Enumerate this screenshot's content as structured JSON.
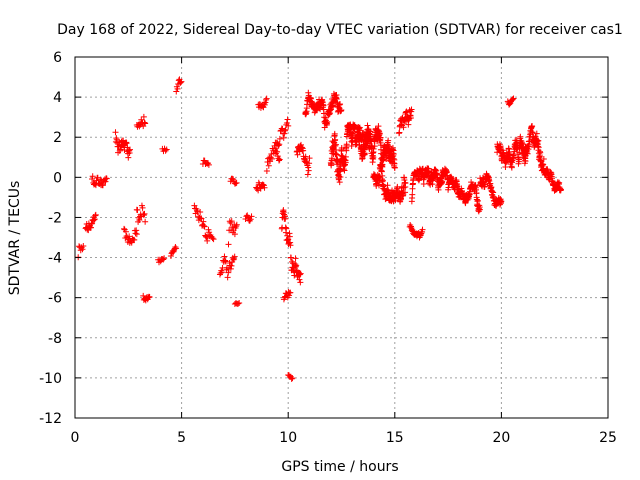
{
  "chart_data": {
    "type": "scatter",
    "title": "Day 168 of 2022, Sidereal Day-to-day VTEC variation (SDTVAR) for receiver cas1",
    "xlabel": "GPS time / hours",
    "ylabel": "SDTVAR / TECUs",
    "xlim": [
      0,
      25
    ],
    "ylim": [
      -12,
      6
    ],
    "xticks": [
      "0",
      "5",
      "10",
      "15",
      "20",
      "25"
    ],
    "yticks": [
      "6",
      "4",
      "2",
      "0",
      "-2",
      "-4",
      "-6",
      "-8",
      "-10",
      "-12"
    ],
    "grid": true,
    "marker": "+",
    "color": "#ff0000",
    "segments": [
      {
        "t0": 0.15,
        "t1": 0.4,
        "y0": -4.0,
        "amp": 2.5,
        "step": 0.04
      },
      {
        "t0": 0.5,
        "t1": 1.0,
        "y0": -2.5,
        "amp": 1.2,
        "step": 0.025
      },
      {
        "t0": 0.8,
        "t1": 1.5,
        "y0": 0.0,
        "amp": 1.3,
        "step": 0.03
      },
      {
        "t0": 1.9,
        "t1": 2.6,
        "y0": 2.3,
        "amp": 1.5,
        "step": 0.02
      },
      {
        "t0": 2.3,
        "t1": 2.9,
        "y0": -2.5,
        "amp": 1.5,
        "step": 0.03
      },
      {
        "t0": 2.9,
        "t1": 3.3,
        "y0": 2.5,
        "amp": 1.5,
        "step": 0.03
      },
      {
        "t0": 2.9,
        "t1": 3.3,
        "y0": -2.0,
        "amp": 2.0,
        "step": 0.03
      },
      {
        "t0": 3.2,
        "t1": 3.5,
        "y0": -6.0,
        "amp": 0.6,
        "step": 0.03
      },
      {
        "t0": 3.9,
        "t1": 4.2,
        "y0": -4.2,
        "amp": 0.5,
        "step": 0.04
      },
      {
        "t0": 4.1,
        "t1": 4.3,
        "y0": 1.5,
        "amp": 0.6,
        "step": 0.05
      },
      {
        "t0": 4.5,
        "t1": 4.75,
        "y0": -4.0,
        "amp": 0.6,
        "step": 0.03
      },
      {
        "t0": 4.75,
        "t1": 5.0,
        "y0": 4.5,
        "amp": 1.0,
        "step": 0.03
      },
      {
        "t0": 5.6,
        "t1": 6.3,
        "y0": -1.5,
        "amp": 1.5,
        "step": 0.03
      },
      {
        "t0": 6.0,
        "t1": 6.3,
        "y0": 0.8,
        "amp": 0.6,
        "step": 0.04
      },
      {
        "t0": 6.3,
        "t1": 6.5,
        "y0": -3.0,
        "amp": 0.6,
        "step": 0.05
      },
      {
        "t0": 6.8,
        "t1": 7.5,
        "y0": -5.0,
        "amp": 1.5,
        "step": 0.03
      },
      {
        "t0": 7.2,
        "t1": 7.6,
        "y0": -3.0,
        "amp": 2.5,
        "step": 0.03
      },
      {
        "t0": 7.3,
        "t1": 7.6,
        "y0": 0.0,
        "amp": 0.8,
        "step": 0.04
      },
      {
        "t0": 7.5,
        "t1": 7.7,
        "y0": -6.3,
        "amp": 0.4,
        "step": 0.05
      },
      {
        "t0": 8.0,
        "t1": 8.3,
        "y0": -2.0,
        "amp": 0.8,
        "step": 0.04
      },
      {
        "t0": 8.5,
        "t1": 8.9,
        "y0": -0.5,
        "amp": 1.0,
        "step": 0.03
      },
      {
        "t0": 8.6,
        "t1": 9.0,
        "y0": 3.5,
        "amp": 0.6,
        "step": 0.03
      },
      {
        "t0": 9.0,
        "t1": 9.6,
        "y0": 0.5,
        "amp": 1.8,
        "step": 0.03
      },
      {
        "t0": 9.4,
        "t1": 10.0,
        "y0": 1.5,
        "amp": 1.5,
        "step": 0.03
      },
      {
        "t0": 9.7,
        "t1": 10.6,
        "y0": -3.0,
        "amp": 2.0,
        "step": 0.015
      },
      {
        "t0": 9.8,
        "t1": 10.1,
        "y0": -6.0,
        "amp": 1.0,
        "step": 0.03
      },
      {
        "t0": 10.0,
        "t1": 10.2,
        "y0": -9.8,
        "amp": 0.7,
        "step": 0.04
      },
      {
        "t0": 10.4,
        "t1": 11.0,
        "y0": 1.0,
        "amp": 1.2,
        "step": 0.02
      },
      {
        "t0": 10.8,
        "t1": 12.5,
        "y0": 3.0,
        "amp": 1.3,
        "step": 0.012
      },
      {
        "t0": 12.0,
        "t1": 15.0,
        "y0": 0.8,
        "amp": 1.7,
        "step": 0.008
      },
      {
        "t0": 13.3,
        "t1": 13.8,
        "y0": 2.5,
        "amp": 1.2,
        "step": 0.02
      },
      {
        "t0": 14.0,
        "t1": 15.5,
        "y0": 0.2,
        "amp": 1.3,
        "step": 0.01
      },
      {
        "t0": 15.2,
        "t1": 15.8,
        "y0": 2.2,
        "amp": 1.3,
        "step": 0.015
      },
      {
        "t0": 15.7,
        "t1": 16.3,
        "y0": -2.5,
        "amp": 0.6,
        "step": 0.02
      },
      {
        "t0": 15.8,
        "t1": 17.5,
        "y0": -1.0,
        "amp": 1.3,
        "step": 0.01
      },
      {
        "t0": 17.5,
        "t1": 19.0,
        "y0": -0.7,
        "amp": 0.9,
        "step": 0.01
      },
      {
        "t0": 19.0,
        "t1": 20.0,
        "y0": -0.3,
        "amp": 1.0,
        "step": 0.012
      },
      {
        "t0": 19.8,
        "t1": 21.2,
        "y0": 1.3,
        "amp": 1.2,
        "step": 0.01
      },
      {
        "t0": 20.3,
        "t1": 20.6,
        "y0": 3.8,
        "amp": 0.6,
        "step": 0.03
      },
      {
        "t0": 21.0,
        "t1": 22.0,
        "y0": 1.2,
        "amp": 1.3,
        "step": 0.01
      },
      {
        "t0": 22.0,
        "t1": 22.8,
        "y0": 0.3,
        "amp": 0.9,
        "step": 0.012
      }
    ]
  }
}
